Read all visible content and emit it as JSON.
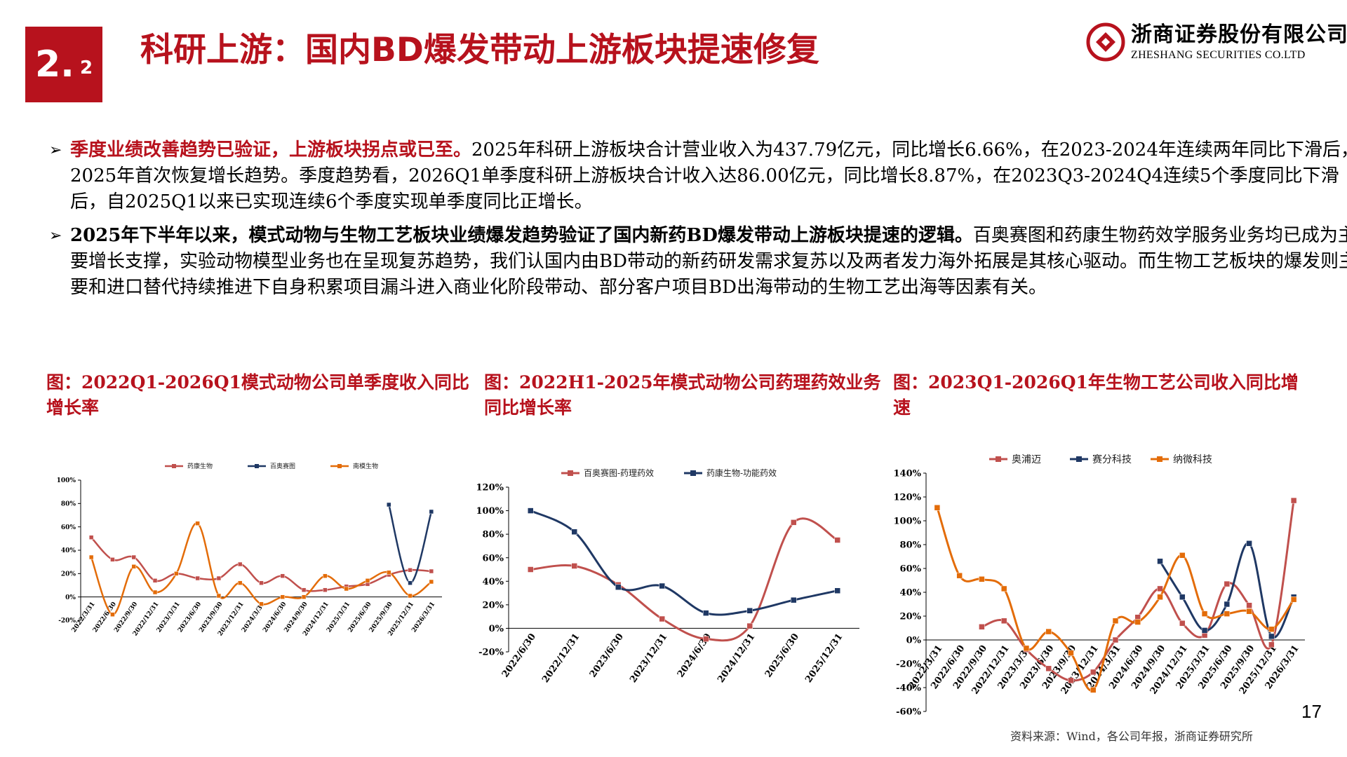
{
  "header": {
    "section_number": "2.",
    "section_sub": "2",
    "title": "科研上游：国内BD爆发带动上游板块提速修复",
    "brand_cn": "浙商证券股份有限公司",
    "brand_en": "ZHESHANG SECURITIES CO.LTD",
    "brand_color": "#b7121d"
  },
  "bullets": [
    {
      "icon": "arrow-bullet-icon",
      "highlight": "季度业绩改善趋势已验证，上游板块拐点或已至。",
      "body": "2025年科研上游板块合计营业收入为437.79亿元，同比增长6.66%，在2023-2024年连续两年同比下滑后，2025年首次恢复增长趋势。季度趋势看，2026Q1单季度科研上游板块合计收入达86.00亿元，同比增长8.87%，在2023Q3-2024Q4连续5个季度同比下滑后，自2025Q1以来已实现连续6个季度实现单季度同比正增长。"
    },
    {
      "icon": "arrow-bullet-icon",
      "highlight": "2025年下半年以来，模式动物与生物工艺板块业绩爆发趋势验证了国内新药BD爆发带动上游板块提速的逻辑。",
      "body": "百奥赛图和药康生物药效学服务业务均已成为主要增长支撑，实验动物模型业务也在呈现复苏趋势，我们认国内由BD带动的新药研发需求复苏以及两者发力海外拓展是其核心驱动。而生物工艺板块的爆发则主要和进口替代持续推进下自身积累项目漏斗进入商业化阶段带动、部分客户项目BD出海带动的生物工艺出海等因素有关。"
    }
  ],
  "captions": [
    "图：2022Q1-2026Q1模式动物公司单季度收入同比增长率",
    "图：2022H1-2025年模式动物公司药理药效业务同比增长率",
    "图：2023Q1-2026Q1年生物工艺公司收入同比增速"
  ],
  "chart_data": [
    {
      "type": "line",
      "title": "",
      "xlabel": "",
      "ylabel": "",
      "ylim": [
        -20,
        100
      ],
      "yticks": [
        "100%",
        "80%",
        "60%",
        "40%",
        "20%",
        "0%",
        "-20%"
      ],
      "yticks_values": [
        100,
        80,
        60,
        40,
        20,
        0,
        -20
      ],
      "legend_position": "top",
      "grid": false,
      "categories": [
        "2022/3/31",
        "2022/6/30",
        "2022/9/30",
        "2022/12/31",
        "2023/3/31",
        "2023/6/30",
        "2023/9/30",
        "2023/12/31",
        "2024/3/31",
        "2024/6/30",
        "2024/9/30",
        "2024/12/31",
        "2025/3/31",
        "2025/6/30",
        "2025/9/30",
        "2025/12/31",
        "2026/3/31"
      ],
      "series": [
        {
          "name": "药康生物",
          "color": "#c0504d",
          "values": [
            51,
            32,
            34,
            14,
            20,
            16,
            16,
            28,
            12,
            18,
            6,
            6,
            9,
            11,
            19,
            23,
            22
          ]
        },
        {
          "name": "百奥赛图",
          "color": "#1f3864",
          "values": [
            null,
            null,
            null,
            null,
            null,
            null,
            null,
            null,
            null,
            null,
            null,
            null,
            null,
            null,
            79,
            12,
            73
          ]
        },
        {
          "name": "南模生物",
          "color": "#e36c09",
          "values": [
            34,
            -15,
            26,
            4,
            20,
            63,
            1,
            12,
            -6,
            0,
            0,
            18,
            7,
            14,
            21,
            1,
            13
          ]
        }
      ]
    },
    {
      "type": "line",
      "title": "",
      "xlabel": "",
      "ylabel": "",
      "ylim": [
        -20,
        120
      ],
      "yticks": [
        "120%",
        "100%",
        "80%",
        "60%",
        "40%",
        "20%",
        "0%",
        "-20%"
      ],
      "yticks_values": [
        120,
        100,
        80,
        60,
        40,
        20,
        0,
        -20
      ],
      "legend_position": "top",
      "grid": false,
      "categories": [
        "2022/6/30",
        "2022/12/31",
        "2023/6/30",
        "2023/12/31",
        "2024/6/30",
        "2024/12/31",
        "2025/6/30",
        "2025/12/31"
      ],
      "series": [
        {
          "name": "百奥赛图-药理药效",
          "color": "#c0504d",
          "values": [
            50,
            53,
            37,
            8,
            -9,
            2,
            90,
            75
          ]
        },
        {
          "name": "药康生物-功能药效",
          "color": "#1f3864",
          "values": [
            100,
            82,
            35,
            36,
            13,
            15,
            24,
            32
          ]
        }
      ]
    },
    {
      "type": "line",
      "title": "",
      "xlabel": "",
      "ylabel": "",
      "ylim": [
        -60,
        140
      ],
      "yticks": [
        "140%",
        "120%",
        "100%",
        "80%",
        "60%",
        "40%",
        "20%",
        "0%",
        "-20%",
        "-40%",
        "-60%"
      ],
      "yticks_values": [
        140,
        120,
        100,
        80,
        60,
        40,
        20,
        0,
        -20,
        -40,
        -60
      ],
      "legend_position": "top",
      "grid": false,
      "categories": [
        "2022/3/31",
        "2022/6/30",
        "2022/9/30",
        "2022/12/31",
        "2023/3/31",
        "2023/6/30",
        "2023/9/30",
        "2023/12/31",
        "2024/3/31",
        "2024/6/30",
        "2024/9/30",
        "2024/12/31",
        "2025/3/31",
        "2025/6/30",
        "2025/9/30",
        "2025/12/31",
        "2026/3/31"
      ],
      "series": [
        {
          "name": "奥浦迈",
          "color": "#c0504d",
          "values": [
            null,
            null,
            11,
            16,
            -8,
            -24,
            -34,
            -27,
            0,
            19,
            43,
            14,
            4,
            47,
            29,
            -4,
            117
          ]
        },
        {
          "name": "赛分科技",
          "color": "#1f3864",
          "values": [
            null,
            null,
            null,
            null,
            null,
            null,
            null,
            null,
            null,
            null,
            66,
            36,
            8,
            30,
            81,
            3,
            36
          ]
        },
        {
          "name": "纳微科技",
          "color": "#e36c09",
          "values": [
            111,
            54,
            51,
            43,
            -7,
            7,
            -11,
            -42,
            16,
            15,
            36,
            71,
            22,
            22,
            24,
            9,
            34
          ]
        }
      ]
    }
  ],
  "page_number": "17",
  "source": "资料来源：Wind，各公司年报，浙商证券研究所"
}
